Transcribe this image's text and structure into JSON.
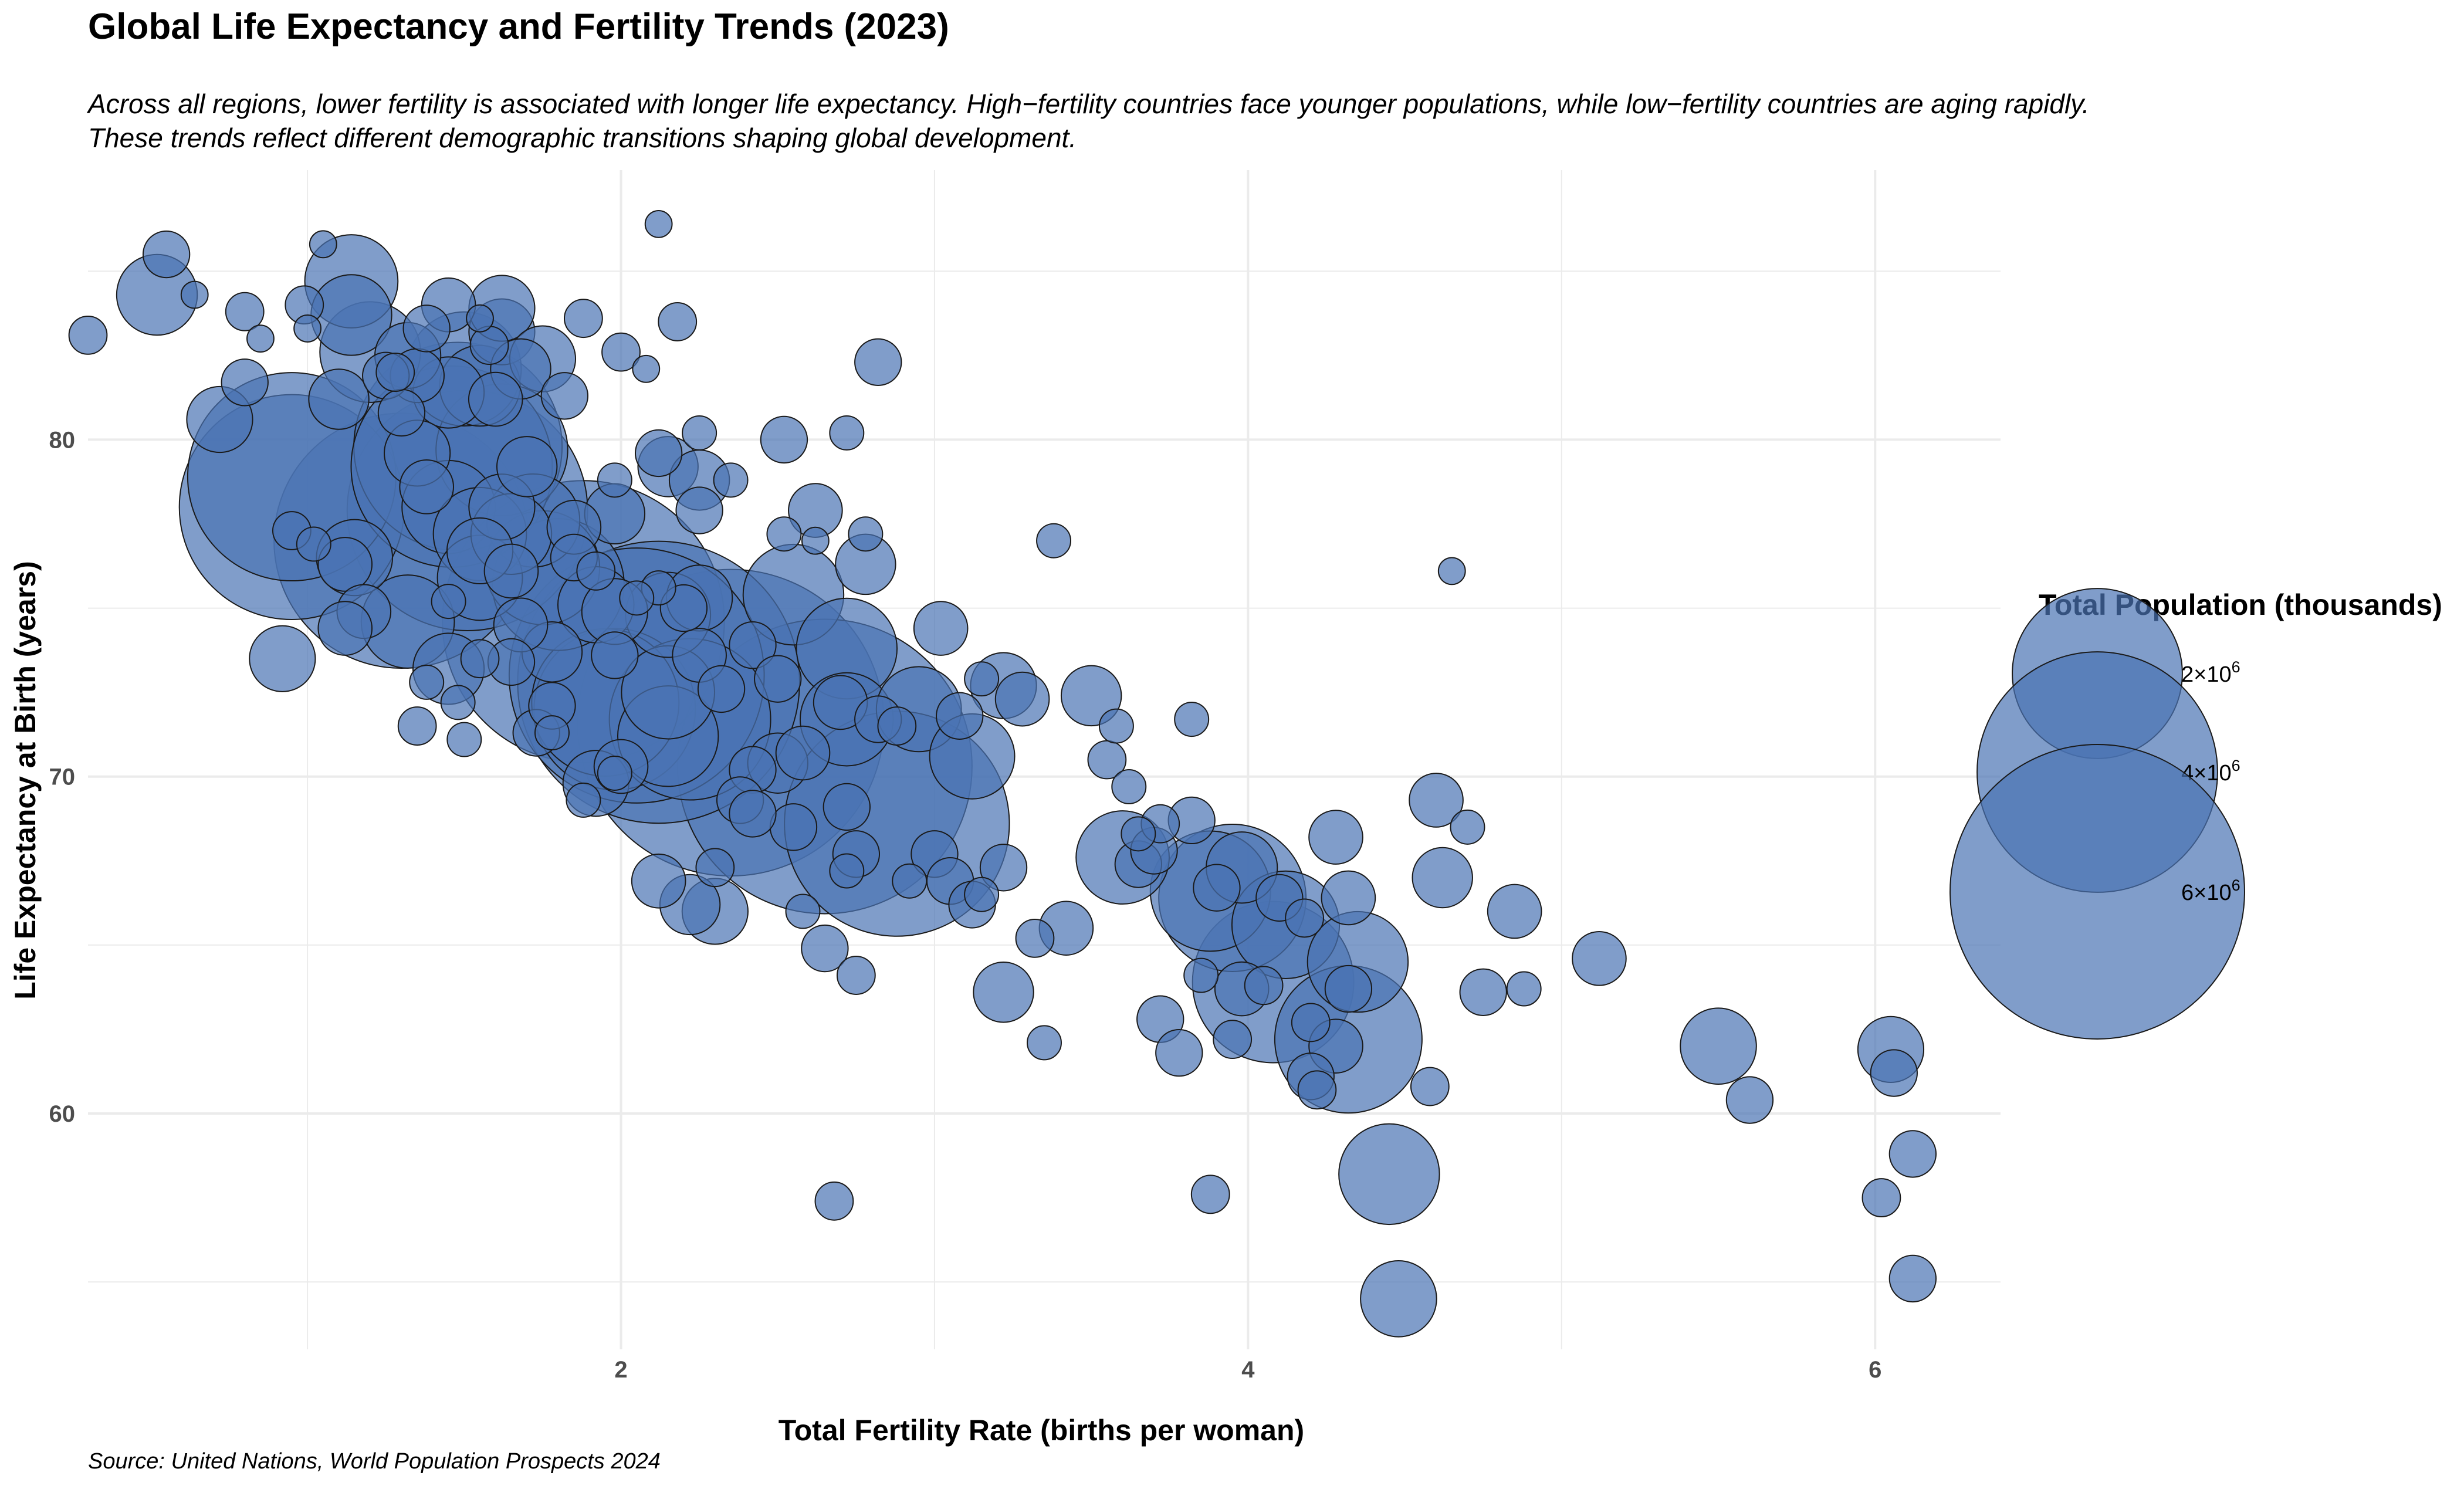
{
  "title": "Global Life Expectancy and Fertility Trends (2023)",
  "subtitle_lines": [
    "Across all regions, lower fertility is associated with longer life expectancy. High−fertility countries face younger populations, while low−fertility countries are aging rapidly.",
    "These trends reflect different demographic transitions shaping global development."
  ],
  "caption": "Source: United Nations, World Population Prospects 2024",
  "colors": {
    "point_fill": "#4a74b4",
    "point_stroke": "#1a1a1a",
    "grid": "#ebebeb"
  },
  "chart_data": {
    "type": "scatter",
    "xlabel": "Total Fertility Rate (births per woman)",
    "ylabel": "Life Expectancy at Birth (years)",
    "xlim": [
      0.3,
      6.4
    ],
    "ylim": [
      53,
      88
    ],
    "x_ticks": [
      2,
      4,
      6
    ],
    "x_tick_labels": [
      "2",
      "4",
      "6"
    ],
    "y_ticks": [
      60,
      70,
      80
    ],
    "y_tick_labels": [
      "60",
      "70",
      "80"
    ],
    "grid": true,
    "size_legend": {
      "title": "Total Population (thousands)",
      "position": "right",
      "entries": [
        {
          "value": 2000000,
          "label_base": "2×10",
          "label_exp": "6"
        },
        {
          "value": 4000000,
          "label_base": "4×10",
          "label_exp": "6"
        },
        {
          "value": 6000000,
          "label_base": "6×10",
          "label_exp": "6"
        }
      ]
    },
    "points": [
      {
        "x": 0.55,
        "y": 85.5,
        "pop": 150000
      },
      {
        "x": 0.52,
        "y": 84.3,
        "pop": 450000
      },
      {
        "x": 0.3,
        "y": 83.1,
        "pop": 100000
      },
      {
        "x": 0.64,
        "y": 84.3,
        "pop": 50000
      },
      {
        "x": 0.8,
        "y": 83.8,
        "pop": 100000
      },
      {
        "x": 0.8,
        "y": 81.7,
        "pop": 150000
      },
      {
        "x": 0.72,
        "y": 80.6,
        "pop": 300000
      },
      {
        "x": 0.85,
        "y": 83.0,
        "pop": 50000
      },
      {
        "x": 0.99,
        "y": 84.0,
        "pop": 100000
      },
      {
        "x": 1.0,
        "y": 83.3,
        "pop": 50000
      },
      {
        "x": 1.14,
        "y": 84.7,
        "pop": 600000
      },
      {
        "x": 1.14,
        "y": 83.7,
        "pop": 450000
      },
      {
        "x": 1.05,
        "y": 85.8,
        "pop": 50000
      },
      {
        "x": 1.2,
        "y": 82.6,
        "pop": 700000
      },
      {
        "x": 1.28,
        "y": 82.0,
        "pop": 100000
      },
      {
        "x": 1.32,
        "y": 82.5,
        "pop": 300000
      },
      {
        "x": 1.38,
        "y": 83.3,
        "pop": 150000
      },
      {
        "x": 1.45,
        "y": 84.0,
        "pop": 200000
      },
      {
        "x": 1.55,
        "y": 83.6,
        "pop": 50000
      },
      {
        "x": 1.58,
        "y": 82.8,
        "pop": 100000
      },
      {
        "x": 1.62,
        "y": 83.2,
        "pop": 300000
      },
      {
        "x": 1.62,
        "y": 83.9,
        "pop": 300000
      },
      {
        "x": 1.68,
        "y": 82.1,
        "pop": 250000
      },
      {
        "x": 1.75,
        "y": 82.4,
        "pop": 300000
      },
      {
        "x": 1.88,
        "y": 83.6,
        "pop": 100000
      },
      {
        "x": 2.12,
        "y": 86.4,
        "pop": 50000
      },
      {
        "x": 2.18,
        "y": 83.5,
        "pop": 100000
      },
      {
        "x": 2.0,
        "y": 82.6,
        "pop": 100000
      },
      {
        "x": 2.08,
        "y": 82.1,
        "pop": 50000
      },
      {
        "x": 1.82,
        "y": 81.3,
        "pop": 150000
      },
      {
        "x": 1.5,
        "y": 82.1,
        "pop": 900000
      },
      {
        "x": 1.55,
        "y": 81.6,
        "pop": 450000
      },
      {
        "x": 1.45,
        "y": 81.4,
        "pop": 350000
      },
      {
        "x": 1.35,
        "y": 81.9,
        "pop": 200000
      },
      {
        "x": 1.25,
        "y": 81.9,
        "pop": 150000
      },
      {
        "x": 1.6,
        "y": 81.2,
        "pop": 200000
      },
      {
        "x": 1.3,
        "y": 80.8,
        "pop": 150000
      },
      {
        "x": 1.1,
        "y": 81.2,
        "pop": 250000
      },
      {
        "x": 0.95,
        "y": 78.9,
        "pop": 3000000
      },
      {
        "x": 0.95,
        "y": 78.0,
        "pop": 3500000
      },
      {
        "x": 1.48,
        "y": 79.8,
        "pop": 3000000
      },
      {
        "x": 1.46,
        "y": 79.2,
        "pop": 2800000
      },
      {
        "x": 1.51,
        "y": 77.9,
        "pop": 4000000
      },
      {
        "x": 1.3,
        "y": 77.0,
        "pop": 4500000
      },
      {
        "x": 1.62,
        "y": 79.7,
        "pop": 1200000
      },
      {
        "x": 1.7,
        "y": 79.2,
        "pop": 250000
      },
      {
        "x": 1.35,
        "y": 79.6,
        "pop": 300000
      },
      {
        "x": 1.38,
        "y": 78.6,
        "pop": 200000
      },
      {
        "x": 1.45,
        "y": 78.0,
        "pop": 600000
      },
      {
        "x": 1.62,
        "y": 78.0,
        "pop": 300000
      },
      {
        "x": 1.72,
        "y": 77.6,
        "pop": 600000
      },
      {
        "x": 1.55,
        "y": 77.2,
        "pop": 600000
      },
      {
        "x": 1.65,
        "y": 77.2,
        "pop": 450000
      },
      {
        "x": 1.55,
        "y": 76.7,
        "pop": 300000
      },
      {
        "x": 1.12,
        "y": 76.3,
        "pop": 200000
      },
      {
        "x": 1.15,
        "y": 76.5,
        "pop": 400000
      },
      {
        "x": 1.02,
        "y": 76.9,
        "pop": 80000
      },
      {
        "x": 0.95,
        "y": 77.3,
        "pop": 100000
      },
      {
        "x": 0.92,
        "y": 73.5,
        "pop": 300000
      },
      {
        "x": 1.18,
        "y": 74.9,
        "pop": 200000
      },
      {
        "x": 1.12,
        "y": 74.4,
        "pop": 200000
      },
      {
        "x": 1.32,
        "y": 74.6,
        "pop": 600000
      },
      {
        "x": 1.45,
        "y": 75.2,
        "pop": 80000
      },
      {
        "x": 1.55,
        "y": 75.9,
        "pop": 500000
      },
      {
        "x": 1.65,
        "y": 76.1,
        "pop": 200000
      },
      {
        "x": 1.68,
        "y": 74.5,
        "pop": 200000
      },
      {
        "x": 1.75,
        "y": 76.2,
        "pop": 900000
      },
      {
        "x": 1.8,
        "y": 75.7,
        "pop": 1200000
      },
      {
        "x": 1.88,
        "y": 74.6,
        "pop": 5500000
      },
      {
        "x": 1.92,
        "y": 75.1,
        "pop": 400000
      },
      {
        "x": 1.98,
        "y": 74.9,
        "pop": 300000
      },
      {
        "x": 1.85,
        "y": 76.5,
        "pop": 150000
      },
      {
        "x": 1.92,
        "y": 76.1,
        "pop": 100000
      },
      {
        "x": 1.85,
        "y": 77.4,
        "pop": 200000
      },
      {
        "x": 1.98,
        "y": 77.8,
        "pop": 250000
      },
      {
        "x": 1.98,
        "y": 78.8,
        "pop": 80000
      },
      {
        "x": 2.12,
        "y": 79.6,
        "pop": 150000
      },
      {
        "x": 2.15,
        "y": 79.2,
        "pop": 250000
      },
      {
        "x": 2.25,
        "y": 78.8,
        "pop": 250000
      },
      {
        "x": 2.35,
        "y": 78.8,
        "pop": 80000
      },
      {
        "x": 2.25,
        "y": 77.9,
        "pop": 150000
      },
      {
        "x": 2.25,
        "y": 80.2,
        "pop": 80000
      },
      {
        "x": 2.52,
        "y": 80.0,
        "pop": 150000
      },
      {
        "x": 2.72,
        "y": 80.2,
        "pop": 80000
      },
      {
        "x": 2.82,
        "y": 82.3,
        "pop": 150000
      },
      {
        "x": 2.62,
        "y": 77.9,
        "pop": 200000
      },
      {
        "x": 2.78,
        "y": 77.2,
        "pop": 80000
      },
      {
        "x": 2.52,
        "y": 77.2,
        "pop": 80000
      },
      {
        "x": 2.62,
        "y": 77.0,
        "pop": 50000
      },
      {
        "x": 2.78,
        "y": 76.3,
        "pop": 250000
      },
      {
        "x": 2.55,
        "y": 75.4,
        "pop": 700000
      },
      {
        "x": 3.38,
        "y": 77.0,
        "pop": 80000
      },
      {
        "x": 1.98,
        "y": 73.6,
        "pop": 150000
      },
      {
        "x": 2.05,
        "y": 73.0,
        "pop": 4500000
      },
      {
        "x": 2.12,
        "y": 72.8,
        "pop": 5500000
      },
      {
        "x": 1.95,
        "y": 72.2,
        "pop": 1500000
      },
      {
        "x": 1.98,
        "y": 72.0,
        "pop": 1800000
      },
      {
        "x": 2.15,
        "y": 72.5,
        "pop": 600000
      },
      {
        "x": 2.22,
        "y": 71.7,
        "pop": 1800000
      },
      {
        "x": 2.35,
        "y": 71.6,
        "pop": 6500000
      },
      {
        "x": 2.15,
        "y": 71.2,
        "pop": 700000
      },
      {
        "x": 2.25,
        "y": 73.6,
        "pop": 200000
      },
      {
        "x": 2.2,
        "y": 75.0,
        "pop": 150000
      },
      {
        "x": 2.25,
        "y": 75.3,
        "pop": 300000
      },
      {
        "x": 2.15,
        "y": 74.8,
        "pop": 500000
      },
      {
        "x": 2.12,
        "y": 75.6,
        "pop": 80000
      },
      {
        "x": 2.05,
        "y": 75.3,
        "pop": 80000
      },
      {
        "x": 2.42,
        "y": 73.9,
        "pop": 150000
      },
      {
        "x": 2.5,
        "y": 72.9,
        "pop": 150000
      },
      {
        "x": 2.32,
        "y": 72.6,
        "pop": 150000
      },
      {
        "x": 2.5,
        "y": 70.4,
        "pop": 250000
      },
      {
        "x": 2.58,
        "y": 70.7,
        "pop": 200000
      },
      {
        "x": 2.42,
        "y": 70.2,
        "pop": 150000
      },
      {
        "x": 2.65,
        "y": 70.3,
        "pop": 6000000
      },
      {
        "x": 2.72,
        "y": 71.7,
        "pop": 600000
      },
      {
        "x": 2.7,
        "y": 72.2,
        "pop": 200000
      },
      {
        "x": 2.82,
        "y": 71.7,
        "pop": 150000
      },
      {
        "x": 2.88,
        "y": 71.5,
        "pop": 100000
      },
      {
        "x": 2.72,
        "y": 73.8,
        "pop": 700000
      },
      {
        "x": 3.02,
        "y": 74.4,
        "pop": 200000
      },
      {
        "x": 2.95,
        "y": 72.0,
        "pop": 500000
      },
      {
        "x": 2.88,
        "y": 68.6,
        "pop": 3500000
      },
      {
        "x": 2.72,
        "y": 69.1,
        "pop": 150000
      },
      {
        "x": 2.55,
        "y": 68.5,
        "pop": 150000
      },
      {
        "x": 2.38,
        "y": 69.3,
        "pop": 150000
      },
      {
        "x": 2.42,
        "y": 68.9,
        "pop": 150000
      },
      {
        "x": 2.3,
        "y": 67.3,
        "pop": 100000
      },
      {
        "x": 2.22,
        "y": 66.2,
        "pop": 250000
      },
      {
        "x": 2.3,
        "y": 66.0,
        "pop": 300000
      },
      {
        "x": 2.12,
        "y": 66.9,
        "pop": 200000
      },
      {
        "x": 2.0,
        "y": 70.3,
        "pop": 200000
      },
      {
        "x": 1.92,
        "y": 69.8,
        "pop": 300000
      },
      {
        "x": 1.88,
        "y": 69.3,
        "pop": 80000
      },
      {
        "x": 1.98,
        "y": 70.1,
        "pop": 80000
      },
      {
        "x": 1.73,
        "y": 71.3,
        "pop": 150000
      },
      {
        "x": 1.78,
        "y": 71.3,
        "pop": 80000
      },
      {
        "x": 1.78,
        "y": 72.1,
        "pop": 150000
      },
      {
        "x": 1.35,
        "y": 71.5,
        "pop": 100000
      },
      {
        "x": 1.5,
        "y": 71.1,
        "pop": 80000
      },
      {
        "x": 1.48,
        "y": 72.2,
        "pop": 80000
      },
      {
        "x": 1.38,
        "y": 72.8,
        "pop": 80000
      },
      {
        "x": 1.45,
        "y": 73.2,
        "pop": 350000
      },
      {
        "x": 1.55,
        "y": 73.5,
        "pop": 100000
      },
      {
        "x": 1.65,
        "y": 73.4,
        "pop": 150000
      },
      {
        "x": 1.78,
        "y": 73.7,
        "pop": 250000
      },
      {
        "x": 2.58,
        "y": 66.0,
        "pop": 80000
      },
      {
        "x": 2.65,
        "y": 64.9,
        "pop": 150000
      },
      {
        "x": 2.75,
        "y": 64.1,
        "pop": 100000
      },
      {
        "x": 2.68,
        "y": 57.4,
        "pop": 100000
      },
      {
        "x": 2.72,
        "y": 67.2,
        "pop": 80000
      },
      {
        "x": 2.75,
        "y": 67.7,
        "pop": 150000
      },
      {
        "x": 2.92,
        "y": 66.9,
        "pop": 80000
      },
      {
        "x": 3.0,
        "y": 67.7,
        "pop": 150000
      },
      {
        "x": 3.05,
        "y": 66.9,
        "pop": 150000
      },
      {
        "x": 3.12,
        "y": 66.2,
        "pop": 150000
      },
      {
        "x": 3.15,
        "y": 66.5,
        "pop": 80000
      },
      {
        "x": 3.22,
        "y": 67.3,
        "pop": 150000
      },
      {
        "x": 3.22,
        "y": 63.6,
        "pop": 250000
      },
      {
        "x": 3.32,
        "y": 65.2,
        "pop": 100000
      },
      {
        "x": 3.42,
        "y": 65.5,
        "pop": 200000
      },
      {
        "x": 3.35,
        "y": 62.1,
        "pop": 80000
      },
      {
        "x": 3.12,
        "y": 70.6,
        "pop": 500000
      },
      {
        "x": 3.08,
        "y": 71.8,
        "pop": 150000
      },
      {
        "x": 3.15,
        "y": 72.9,
        "pop": 80000
      },
      {
        "x": 3.22,
        "y": 72.7,
        "pop": 300000
      },
      {
        "x": 3.28,
        "y": 72.3,
        "pop": 200000
      },
      {
        "x": 3.5,
        "y": 72.4,
        "pop": 250000
      },
      {
        "x": 3.58,
        "y": 71.5,
        "pop": 80000
      },
      {
        "x": 3.55,
        "y": 70.5,
        "pop": 100000
      },
      {
        "x": 3.62,
        "y": 69.7,
        "pop": 80000
      },
      {
        "x": 3.6,
        "y": 67.6,
        "pop": 600000
      },
      {
        "x": 3.65,
        "y": 67.4,
        "pop": 150000
      },
      {
        "x": 3.7,
        "y": 67.8,
        "pop": 150000
      },
      {
        "x": 3.72,
        "y": 68.6,
        "pop": 100000
      },
      {
        "x": 3.65,
        "y": 68.3,
        "pop": 80000
      },
      {
        "x": 3.82,
        "y": 68.7,
        "pop": 150000
      },
      {
        "x": 3.82,
        "y": 71.7,
        "pop": 80000
      },
      {
        "x": 3.72,
        "y": 62.8,
        "pop": 150000
      },
      {
        "x": 3.78,
        "y": 61.8,
        "pop": 150000
      },
      {
        "x": 3.85,
        "y": 64.1,
        "pop": 80000
      },
      {
        "x": 3.88,
        "y": 66.6,
        "pop": 1000000
      },
      {
        "x": 3.9,
        "y": 66.7,
        "pop": 150000
      },
      {
        "x": 3.95,
        "y": 66.4,
        "pop": 1500000
      },
      {
        "x": 3.98,
        "y": 67.3,
        "pop": 350000
      },
      {
        "x": 3.98,
        "y": 63.7,
        "pop": 200000
      },
      {
        "x": 4.08,
        "y": 63.9,
        "pop": 1800000
      },
      {
        "x": 4.05,
        "y": 63.8,
        "pop": 100000
      },
      {
        "x": 3.95,
        "y": 62.2,
        "pop": 100000
      },
      {
        "x": 3.88,
        "y": 57.6,
        "pop": 100000
      },
      {
        "x": 4.1,
        "y": 66.4,
        "pop": 150000
      },
      {
        "x": 4.12,
        "y": 65.6,
        "pop": 800000
      },
      {
        "x": 4.18,
        "y": 65.8,
        "pop": 100000
      },
      {
        "x": 4.2,
        "y": 62.7,
        "pop": 100000
      },
      {
        "x": 4.2,
        "y": 61.1,
        "pop": 150000
      },
      {
        "x": 4.22,
        "y": 60.7,
        "pop": 100000
      },
      {
        "x": 4.28,
        "y": 62.0,
        "pop": 200000
      },
      {
        "x": 4.32,
        "y": 62.2,
        "pop": 1500000
      },
      {
        "x": 4.32,
        "y": 63.7,
        "pop": 150000
      },
      {
        "x": 4.32,
        "y": 66.4,
        "pop": 200000
      },
      {
        "x": 4.35,
        "y": 64.5,
        "pop": 700000
      },
      {
        "x": 4.28,
        "y": 68.2,
        "pop": 200000
      },
      {
        "x": 4.45,
        "y": 58.2,
        "pop": 700000
      },
      {
        "x": 4.48,
        "y": 54.5,
        "pop": 400000
      },
      {
        "x": 4.58,
        "y": 60.8,
        "pop": 100000
      },
      {
        "x": 4.6,
        "y": 69.3,
        "pop": 200000
      },
      {
        "x": 4.65,
        "y": 76.1,
        "pop": 50000
      },
      {
        "x": 4.62,
        "y": 67.0,
        "pop": 250000
      },
      {
        "x": 4.7,
        "y": 68.5,
        "pop": 80000
      },
      {
        "x": 4.75,
        "y": 63.6,
        "pop": 150000
      },
      {
        "x": 4.85,
        "y": 66.0,
        "pop": 200000
      },
      {
        "x": 4.88,
        "y": 63.7,
        "pop": 80000
      },
      {
        "x": 5.12,
        "y": 64.6,
        "pop": 200000
      },
      {
        "x": 5.5,
        "y": 62.0,
        "pop": 400000
      },
      {
        "x": 5.6,
        "y": 60.4,
        "pop": 150000
      },
      {
        "x": 6.05,
        "y": 61.9,
        "pop": 300000
      },
      {
        "x": 6.06,
        "y": 61.2,
        "pop": 150000
      },
      {
        "x": 6.02,
        "y": 57.5,
        "pop": 100000
      },
      {
        "x": 6.12,
        "y": 58.8,
        "pop": 150000
      },
      {
        "x": 6.12,
        "y": 55.1,
        "pop": 150000
      }
    ]
  }
}
